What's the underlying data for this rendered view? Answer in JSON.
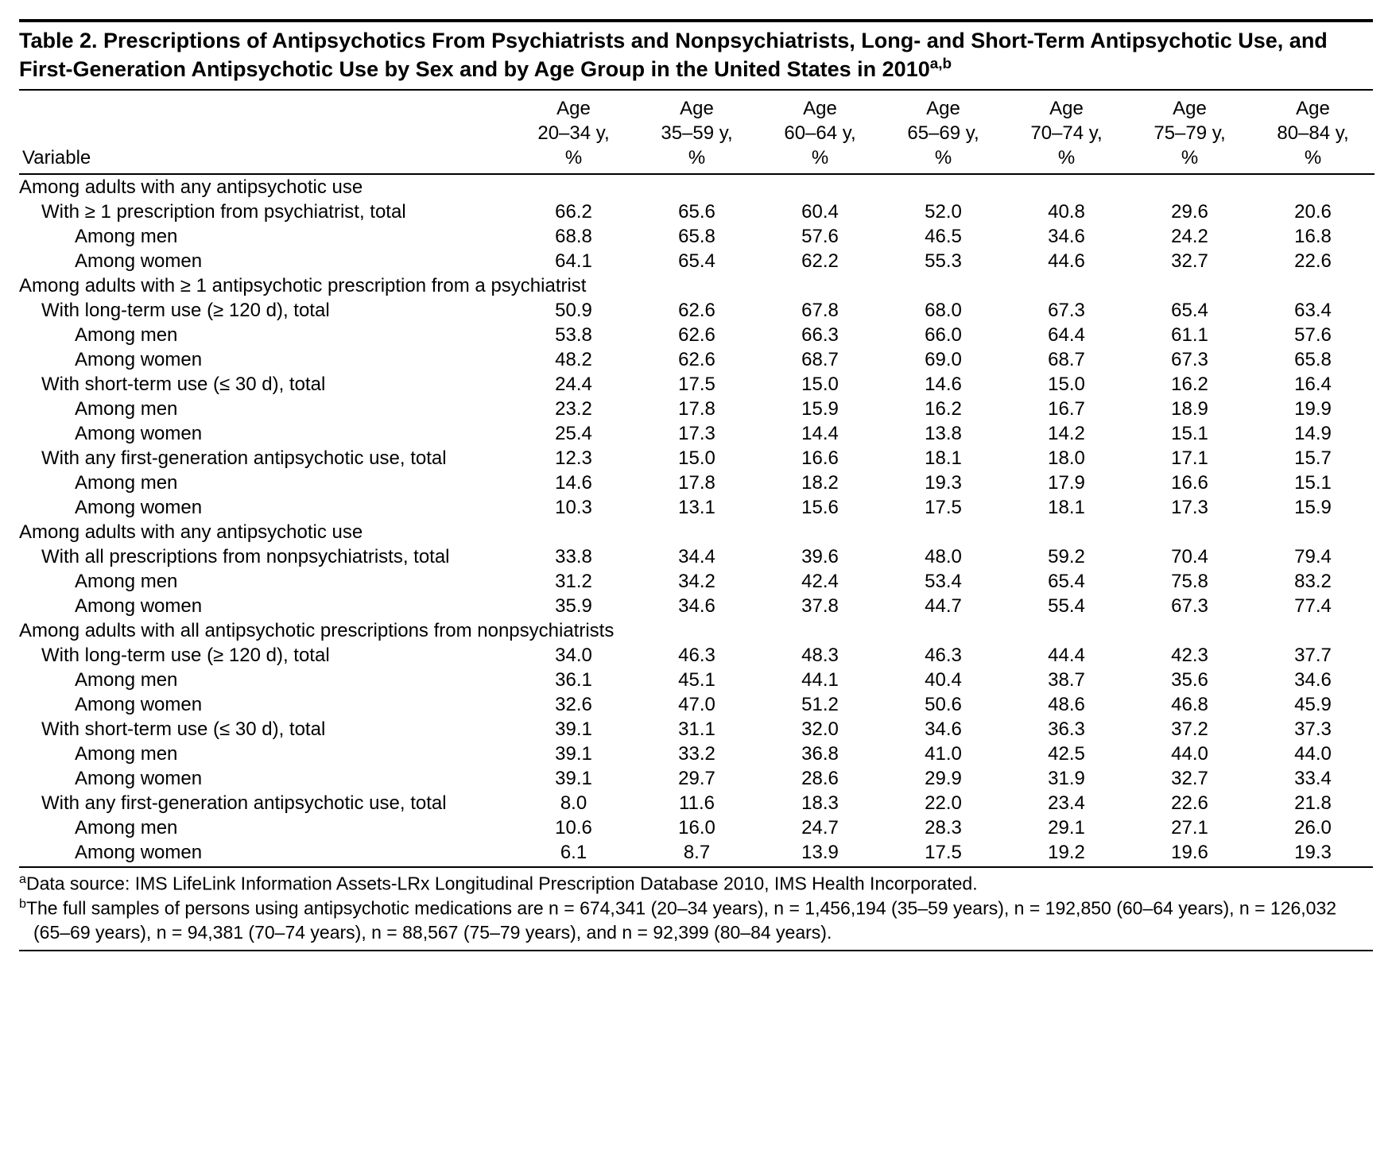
{
  "title_html": "Table 2. Prescriptions of Antipsychotics From Psychiatrists and Nonpsychiatrists, Long- and Short-Term Antipsychotic Use, and First-Generation Antipsychotic Use by Sex and by Age Group in the United States in 2010",
  "title_sup": "a,b",
  "header": {
    "variable": "Variable",
    "cols": [
      {
        "l1": "Age",
        "l2": "20–34 y,",
        "l3": "%"
      },
      {
        "l1": "Age",
        "l2": "35–59 y,",
        "l3": "%"
      },
      {
        "l1": "Age",
        "l2": "60–64 y,",
        "l3": "%"
      },
      {
        "l1": "Age",
        "l2": "65–69 y,",
        "l3": "%"
      },
      {
        "l1": "Age",
        "l2": "70–74 y,",
        "l3": "%"
      },
      {
        "l1": "Age",
        "l2": "75–79 y,",
        "l3": "%"
      },
      {
        "l1": "Age",
        "l2": "80–84 y,",
        "l3": "%"
      }
    ]
  },
  "rows": [
    {
      "type": "section",
      "label": "Among adults with any antipsychotic use"
    },
    {
      "type": "ind1",
      "label": "With ≥ 1 prescription from psychiatrist, total",
      "v": [
        "66.2",
        "65.6",
        "60.4",
        "52.0",
        "40.8",
        "29.6",
        "20.6"
      ]
    },
    {
      "type": "ind2",
      "label": "Among men",
      "v": [
        "68.8",
        "65.8",
        "57.6",
        "46.5",
        "34.6",
        "24.2",
        "16.8"
      ]
    },
    {
      "type": "ind2",
      "label": "Among women",
      "v": [
        "64.1",
        "65.4",
        "62.2",
        "55.3",
        "44.6",
        "32.7",
        "22.6"
      ]
    },
    {
      "type": "section",
      "label": "Among adults with ≥ 1 antipsychotic prescription from a psychiatrist"
    },
    {
      "type": "ind1",
      "label": "With long-term use (≥ 120 d), total",
      "v": [
        "50.9",
        "62.6",
        "67.8",
        "68.0",
        "67.3",
        "65.4",
        "63.4"
      ]
    },
    {
      "type": "ind2",
      "label": "Among men",
      "v": [
        "53.8",
        "62.6",
        "66.3",
        "66.0",
        "64.4",
        "61.1",
        "57.6"
      ]
    },
    {
      "type": "ind2",
      "label": "Among women",
      "v": [
        "48.2",
        "62.6",
        "68.7",
        "69.0",
        "68.7",
        "67.3",
        "65.8"
      ]
    },
    {
      "type": "ind1",
      "label": "With short-term use (≤ 30 d), total",
      "v": [
        "24.4",
        "17.5",
        "15.0",
        "14.6",
        "15.0",
        "16.2",
        "16.4"
      ]
    },
    {
      "type": "ind2",
      "label": "Among men",
      "v": [
        "23.2",
        "17.8",
        "15.9",
        "16.2",
        "16.7",
        "18.9",
        "19.9"
      ]
    },
    {
      "type": "ind2",
      "label": "Among women",
      "v": [
        "25.4",
        "17.3",
        "14.4",
        "13.8",
        "14.2",
        "15.1",
        "14.9"
      ]
    },
    {
      "type": "ind1",
      "label": "With any first-generation antipsychotic use, total",
      "v": [
        "12.3",
        "15.0",
        "16.6",
        "18.1",
        "18.0",
        "17.1",
        "15.7"
      ]
    },
    {
      "type": "ind2",
      "label": "Among men",
      "v": [
        "14.6",
        "17.8",
        "18.2",
        "19.3",
        "17.9",
        "16.6",
        "15.1"
      ]
    },
    {
      "type": "ind2",
      "label": "Among women",
      "v": [
        "10.3",
        "13.1",
        "15.6",
        "17.5",
        "18.1",
        "17.3",
        "15.9"
      ]
    },
    {
      "type": "section",
      "label": "Among adults with any antipsychotic use"
    },
    {
      "type": "ind1",
      "label": "With all prescriptions from nonpsychiatrists, total",
      "v": [
        "33.8",
        "34.4",
        "39.6",
        "48.0",
        "59.2",
        "70.4",
        "79.4"
      ]
    },
    {
      "type": "ind2",
      "label": "Among men",
      "v": [
        "31.2",
        "34.2",
        "42.4",
        "53.4",
        "65.4",
        "75.8",
        "83.2"
      ]
    },
    {
      "type": "ind2",
      "label": "Among women",
      "v": [
        "35.9",
        "34.6",
        "37.8",
        "44.7",
        "55.4",
        "67.3",
        "77.4"
      ]
    },
    {
      "type": "section",
      "label": "Among adults with all antipsychotic prescriptions from nonpsychiatrists"
    },
    {
      "type": "ind1",
      "label": "With long-term use (≥ 120 d), total",
      "v": [
        "34.0",
        "46.3",
        "48.3",
        "46.3",
        "44.4",
        "42.3",
        "37.7"
      ]
    },
    {
      "type": "ind2",
      "label": "Among men",
      "v": [
        "36.1",
        "45.1",
        "44.1",
        "40.4",
        "38.7",
        "35.6",
        "34.6"
      ]
    },
    {
      "type": "ind2",
      "label": "Among women",
      "v": [
        "32.6",
        "47.0",
        "51.2",
        "50.6",
        "48.6",
        "46.8",
        "45.9"
      ]
    },
    {
      "type": "ind1",
      "label": "With short-term use (≤ 30 d), total",
      "v": [
        "39.1",
        "31.1",
        "32.0",
        "34.6",
        "36.3",
        "37.2",
        "37.3"
      ]
    },
    {
      "type": "ind2",
      "label": "Among men",
      "v": [
        "39.1",
        "33.2",
        "36.8",
        "41.0",
        "42.5",
        "44.0",
        "44.0"
      ]
    },
    {
      "type": "ind2",
      "label": "Among women",
      "v": [
        "39.1",
        "29.7",
        "28.6",
        "29.9",
        "31.9",
        "32.7",
        "33.4"
      ]
    },
    {
      "type": "ind1",
      "label": "With any first-generation antipsychotic use, total",
      "v": [
        "8.0",
        "11.6",
        "18.3",
        "22.0",
        "23.4",
        "22.6",
        "21.8"
      ]
    },
    {
      "type": "ind2",
      "label": "Among men",
      "v": [
        "10.6",
        "16.0",
        "24.7",
        "28.3",
        "29.1",
        "27.1",
        "26.0"
      ]
    },
    {
      "type": "ind2",
      "label": "Among women",
      "v": [
        "6.1",
        "8.7",
        "13.9",
        "17.5",
        "19.2",
        "19.6",
        "19.3"
      ]
    }
  ],
  "footnotes": {
    "a": "Data source: IMS LifeLink Information Assets-LRx Longitudinal Prescription Database 2010, IMS Health Incorporated.",
    "b": "The full samples of persons using antipsychotic medications are n = 674,341 (20–34 years), n = 1,456,194 (35–59 years), n = 192,850 (60–64 years), n = 126,032 (65–69 years), n = 94,381 (70–74 years), n = 88,567 (75–79 years), and n = 92,399 (80–84 years)."
  }
}
